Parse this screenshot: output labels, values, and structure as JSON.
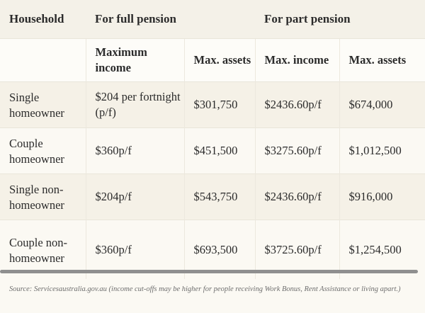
{
  "table": {
    "group_headers": {
      "household": "Household",
      "full_pension": "For full pension",
      "part_pension": "For part pension"
    },
    "sub_headers": {
      "full_max_income": "Maximum income",
      "full_max_assets": "Max. assets",
      "part_max_income": "Max. income",
      "part_max_assets": "Max. assets"
    },
    "rows": [
      {
        "household": "Single homeowner",
        "full_max_income": "$204 per fortnight (p/f)",
        "full_max_assets": "$301,750",
        "part_max_income": "$2436.60p/f",
        "part_max_assets": "$674,000"
      },
      {
        "household": "Couple homeowner",
        "full_max_income": "$360p/f",
        "full_max_assets": "$451,500",
        "part_max_income": "$3275.60p/f",
        "part_max_assets": "$1,012,500"
      },
      {
        "household": "Single non-homeowner",
        "full_max_income": "$204p/f",
        "full_max_assets": "$543,750",
        "part_max_income": "$2436.60p/f",
        "part_max_assets": "$916,000"
      },
      {
        "household": "Couple non-homeowner",
        "full_max_income": "$360p/f",
        "full_max_assets": "$693,500",
        "part_max_income": "$3725.60p/f",
        "part_max_assets": "$1,254,500"
      }
    ]
  },
  "source_note": "Source: Servicesaustralia.gov.au (income cut-offs may be higher for people receiving Work Bonus, Rent Assistance or living apart.)"
}
